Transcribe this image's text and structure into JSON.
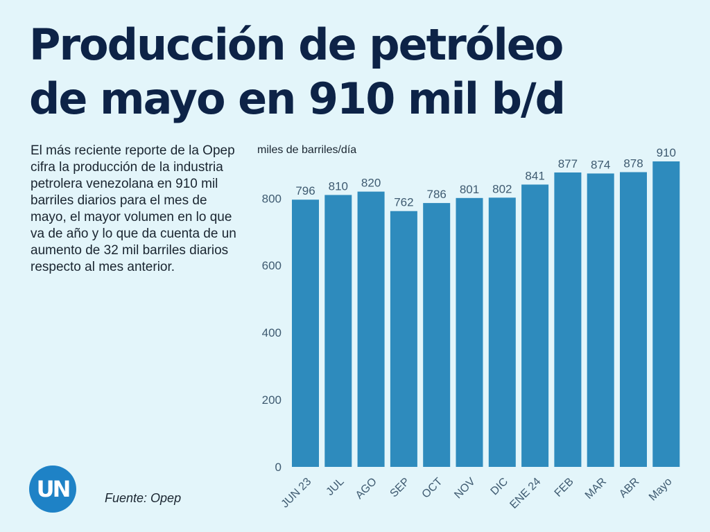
{
  "title": {
    "line1": "Producción de petróleo",
    "line2": "de mayo en 910 mil b/d"
  },
  "description": "El más reciente reporte de la Opep cifra la producción de la industria petrolera venezolana en 910 mil barriles diarios para el mes de mayo, el mayor volumen en lo que va de año y lo que da cuenta de un aumento de 32 mil barriles diarios respecto al mes anterior.",
  "source": "Fuente: Opep",
  "logo": {
    "text": "UN",
    "icon": "un-logo-icon",
    "color": "#1e82c6"
  },
  "colors": {
    "background": "#e3f5fa",
    "bar": "#2e8bbd",
    "title": "#0d2347"
  },
  "chart_data": {
    "type": "bar",
    "ylabel": "miles de barriles/día",
    "categories": [
      "JUN 23",
      "JUL",
      "AGO",
      "SEP",
      "OCT",
      "NOV",
      "DIC",
      "ENE 24",
      "FEB",
      "MAR",
      "ABR",
      "Mayo"
    ],
    "values": [
      796,
      810,
      820,
      762,
      786,
      801,
      802,
      841,
      877,
      874,
      878,
      910
    ],
    "yticks": [
      0,
      200,
      400,
      600,
      800
    ],
    "ylim": [
      0,
      910
    ],
    "grid": false,
    "data_labels": true
  }
}
